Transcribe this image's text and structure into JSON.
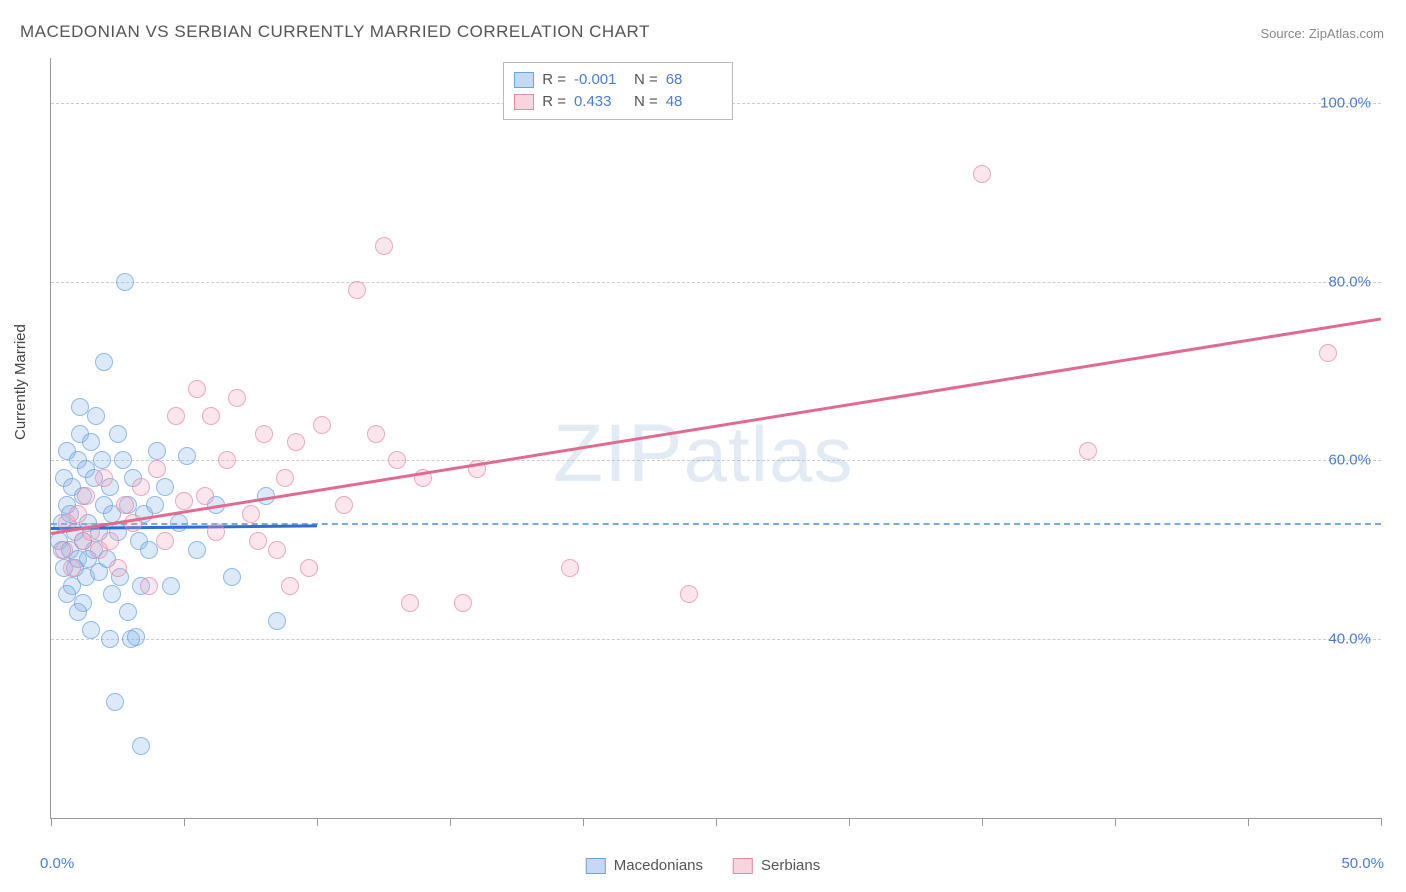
{
  "title": "MACEDONIAN VS SERBIAN CURRENTLY MARRIED CORRELATION CHART",
  "source": "Source: ZipAtlas.com",
  "ylabel": "Currently Married",
  "watermark": "ZIPatlas",
  "chart": {
    "type": "scatter",
    "xlim": [
      0,
      50
    ],
    "ylim": [
      20,
      105
    ],
    "yticks": [
      40,
      60,
      80,
      100
    ],
    "ytick_labels": [
      "40.0%",
      "60.0%",
      "80.0%",
      "100.0%"
    ],
    "ref_line_y": 53,
    "xtick_positions": [
      0,
      5,
      10,
      15,
      20,
      25,
      30,
      35,
      40,
      45,
      50
    ],
    "x_start_label": "0.0%",
    "x_end_label": "50.0%",
    "background_color": "#ffffff",
    "grid_color": "#cccccc",
    "marker_size": 16,
    "series": [
      {
        "name": "Macedonians",
        "color_fill": "rgba(137,180,230,0.4)",
        "color_stroke": "#6ba3e0",
        "class": "blue",
        "R": "-0.001",
        "N": "68",
        "trend": {
          "x1": 0,
          "y1": 52.5,
          "x2": 10,
          "y2": 52.8,
          "color": "#2f6fd1",
          "width": 3
        },
        "points": [
          [
            0.3,
            51
          ],
          [
            0.4,
            53
          ],
          [
            0.5,
            58
          ],
          [
            0.5,
            48
          ],
          [
            0.6,
            61
          ],
          [
            0.6,
            55
          ],
          [
            0.7,
            50
          ],
          [
            0.7,
            54
          ],
          [
            0.8,
            46
          ],
          [
            0.8,
            57
          ],
          [
            0.9,
            52
          ],
          [
            1.0,
            60
          ],
          [
            1.0,
            49
          ],
          [
            1.1,
            63
          ],
          [
            1.1,
            66
          ],
          [
            1.2,
            56
          ],
          [
            1.2,
            44
          ],
          [
            1.3,
            47
          ],
          [
            1.3,
            59
          ],
          [
            1.4,
            53
          ],
          [
            1.5,
            62
          ],
          [
            1.5,
            41
          ],
          [
            1.6,
            50
          ],
          [
            1.6,
            58
          ],
          [
            1.7,
            65
          ],
          [
            1.8,
            47.5
          ],
          [
            1.8,
            52
          ],
          [
            1.9,
            60
          ],
          [
            2.0,
            55
          ],
          [
            2.0,
            71
          ],
          [
            2.1,
            49
          ],
          [
            2.2,
            57
          ],
          [
            2.3,
            54
          ],
          [
            2.3,
            45
          ],
          [
            2.5,
            63
          ],
          [
            2.5,
            52
          ],
          [
            2.6,
            47
          ],
          [
            2.7,
            60
          ],
          [
            2.8,
            80
          ],
          [
            2.9,
            43
          ],
          [
            2.9,
            55
          ],
          [
            3.0,
            40
          ],
          [
            3.1,
            58
          ],
          [
            3.2,
            40.3
          ],
          [
            3.3,
            51
          ],
          [
            3.4,
            46
          ],
          [
            3.5,
            54
          ],
          [
            3.7,
            50
          ],
          [
            3.9,
            55
          ],
          [
            4.0,
            61
          ],
          [
            4.3,
            57
          ],
          [
            4.5,
            46
          ],
          [
            4.8,
            53
          ],
          [
            5.1,
            60.5
          ],
          [
            5.5,
            50
          ],
          [
            6.2,
            55
          ],
          [
            6.8,
            47
          ],
          [
            8.1,
            56
          ],
          [
            8.5,
            42
          ],
          [
            2.4,
            33
          ],
          [
            3.4,
            28
          ],
          [
            2.2,
            40
          ],
          [
            0.6,
            45
          ],
          [
            1.0,
            43
          ],
          [
            1.2,
            51
          ],
          [
            0.9,
            48
          ],
          [
            0.4,
            50
          ],
          [
            1.4,
            49
          ]
        ]
      },
      {
        "name": "Serbians",
        "color_fill": "rgba(240,160,185,0.35)",
        "color_stroke": "#e88ba8",
        "class": "pink",
        "R": "0.433",
        "N": "48",
        "trend": {
          "x1": 0,
          "y1": 52,
          "x2": 50,
          "y2": 76,
          "color": "#e06a90",
          "width": 2.5
        },
        "points": [
          [
            0.5,
            50
          ],
          [
            0.6,
            53
          ],
          [
            0.8,
            48
          ],
          [
            1.0,
            54
          ],
          [
            1.2,
            51
          ],
          [
            1.3,
            56
          ],
          [
            1.5,
            52
          ],
          [
            1.8,
            50
          ],
          [
            2.0,
            58
          ],
          [
            2.2,
            51
          ],
          [
            2.5,
            48
          ],
          [
            2.8,
            55
          ],
          [
            3.1,
            53
          ],
          [
            3.4,
            57
          ],
          [
            3.7,
            46
          ],
          [
            4.0,
            59
          ],
          [
            4.3,
            51
          ],
          [
            4.7,
            65
          ],
          [
            5.0,
            55.5
          ],
          [
            5.5,
            68
          ],
          [
            5.8,
            56
          ],
          [
            6.2,
            52
          ],
          [
            6.6,
            60
          ],
          [
            7.0,
            67
          ],
          [
            7.5,
            54
          ],
          [
            8.0,
            63
          ],
          [
            8.5,
            50
          ],
          [
            8.8,
            58
          ],
          [
            9.2,
            62
          ],
          [
            9.7,
            48
          ],
          [
            10.2,
            64
          ],
          [
            11.0,
            55
          ],
          [
            11.5,
            79
          ],
          [
            12.2,
            63
          ],
          [
            12.5,
            84
          ],
          [
            13.0,
            60
          ],
          [
            13.5,
            44
          ],
          [
            14.0,
            58
          ],
          [
            15.5,
            44
          ],
          [
            16.0,
            59
          ],
          [
            19.5,
            48
          ],
          [
            24.0,
            45
          ],
          [
            35.0,
            92
          ],
          [
            39.0,
            61
          ],
          [
            48.0,
            72
          ],
          [
            6.0,
            65
          ],
          [
            7.8,
            51
          ],
          [
            9.0,
            46
          ]
        ]
      }
    ]
  },
  "stats_legend": {
    "R_label": "R =",
    "N_label": "N ="
  },
  "bottom_legend": {
    "items": [
      "Macedonians",
      "Serbians"
    ]
  }
}
